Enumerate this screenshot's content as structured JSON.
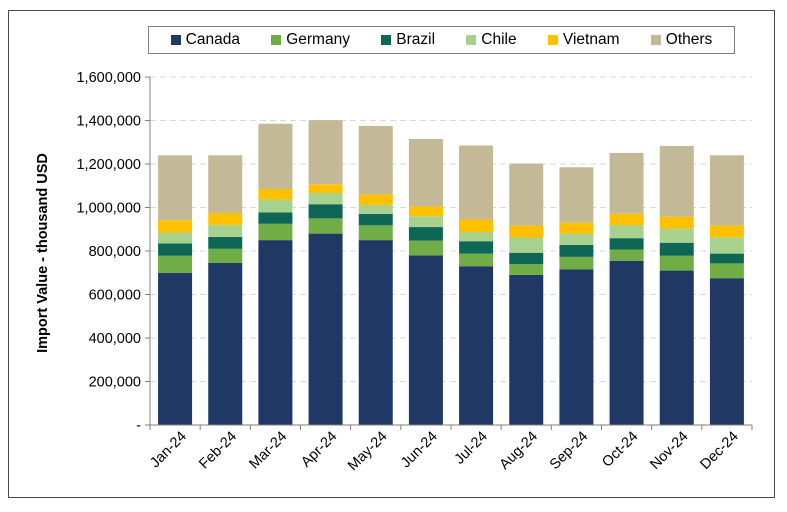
{
  "chart_data": {
    "type": "bar",
    "stacked": true,
    "title": "",
    "xlabel": "",
    "ylabel": "Import Value - thousand USD",
    "ylim": [
      0,
      1600000
    ],
    "yticks": [
      0,
      200000,
      400000,
      600000,
      800000,
      1000000,
      1200000,
      1400000,
      1600000
    ],
    "ytick_labels": [
      "-",
      "200,000",
      "400,000",
      "600,000",
      "800,000",
      "1,000,000",
      "1,200,000",
      "1,400,000",
      "1,600,000"
    ],
    "grid": "horizontal dashed",
    "legend_position": "top",
    "categories": [
      "Jan-24",
      "Feb-24",
      "Mar-24",
      "Apr-24",
      "May-24",
      "Jun-24",
      "Jul-24",
      "Aug-24",
      "Sep-24",
      "Oct-24",
      "Nov-24",
      "Dec-24"
    ],
    "series": [
      {
        "name": "Canada",
        "color": "#1f3864",
        "values": [
          700000,
          745000,
          850000,
          880000,
          850000,
          780000,
          730000,
          690000,
          715000,
          755000,
          710000,
          675000
        ]
      },
      {
        "name": "Germany",
        "color": "#70ad47",
        "values": [
          78000,
          65000,
          75000,
          70000,
          68000,
          68000,
          58000,
          50000,
          58000,
          52000,
          68000,
          68000
        ]
      },
      {
        "name": "Brazil",
        "color": "#0e6655",
        "values": [
          57000,
          55000,
          52000,
          65000,
          52000,
          62000,
          57000,
          52000,
          55000,
          52000,
          60000,
          45000
        ]
      },
      {
        "name": "Chile",
        "color": "#a9d18e",
        "values": [
          50000,
          55000,
          60000,
          52000,
          42000,
          50000,
          42000,
          70000,
          52000,
          60000,
          65000,
          75000
        ]
      },
      {
        "name": "Vietnam",
        "color": "#ffc000",
        "values": [
          57000,
          55000,
          48000,
          40000,
          48000,
          45000,
          58000,
          55000,
          50000,
          52000,
          55000,
          55000
        ]
      },
      {
        "name": "Others",
        "color": "#c4b996",
        "values": [
          298000,
          265000,
          300000,
          295000,
          315000,
          310000,
          340000,
          285000,
          255000,
          280000,
          325000,
          322000
        ]
      }
    ]
  }
}
